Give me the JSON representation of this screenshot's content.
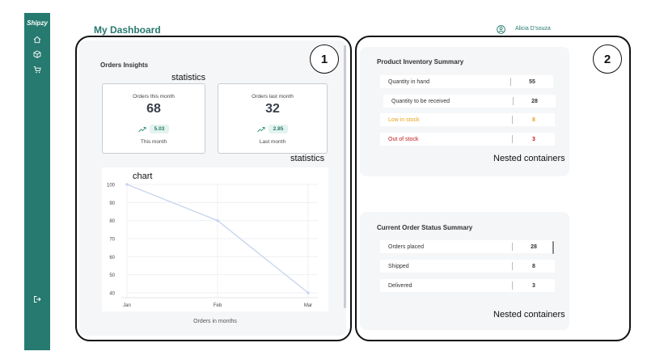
{
  "sidebar": {
    "brand": "Shipzy",
    "nav": [
      "home-icon",
      "package-icon",
      "cart-icon"
    ],
    "logout": "logout-icon",
    "color": "#267a6f"
  },
  "header": {
    "title": "My Dashboard",
    "user_name": "Alicia D'souza"
  },
  "annotations": {
    "one": "1",
    "two": "2",
    "statistics_a": "statistics",
    "statistics_b": "statistics",
    "chart": "chart",
    "nested_a": "Nested containers",
    "nested_b": "Nested containers"
  },
  "insights": {
    "title": "Orders Insights",
    "this_month": {
      "label": "Orders this month",
      "value": "68",
      "trend": "5.03",
      "sub": "This month"
    },
    "last_month": {
      "label": "Orders last month",
      "value": "32",
      "trend": "2.85",
      "sub": "Last month"
    },
    "chart_caption": "Orders in months"
  },
  "chart_data": {
    "type": "line",
    "categories": [
      "Jan",
      "Feb",
      "Mar"
    ],
    "series": [
      {
        "values": [
          100,
          80,
          40
        ]
      }
    ],
    "yticks": [
      "100",
      "90",
      "80",
      "70",
      "60",
      "50",
      "40"
    ],
    "ylim": [
      40,
      100
    ],
    "xlabel": "Orders in months",
    "grid": true,
    "line_color": "#c9d6ee"
  },
  "inventory": {
    "title": "Product Inventory Summary",
    "rows": [
      {
        "label": "Quantity in hand",
        "value": "55",
        "color": "#444444"
      },
      {
        "label": "Quantity to be received",
        "value": "28",
        "color": "#444444"
      },
      {
        "label": "Low in stock",
        "value": "8",
        "color": "#e8a11c"
      },
      {
        "label": "Out of stock",
        "value": "3",
        "color": "#c0181c"
      }
    ]
  },
  "orders": {
    "title": "Current Order Status Summary",
    "rows": [
      {
        "label": "Orders placed",
        "value": "28"
      },
      {
        "label": "Shipped",
        "value": "8"
      },
      {
        "label": "Delivered",
        "value": "3"
      }
    ]
  }
}
